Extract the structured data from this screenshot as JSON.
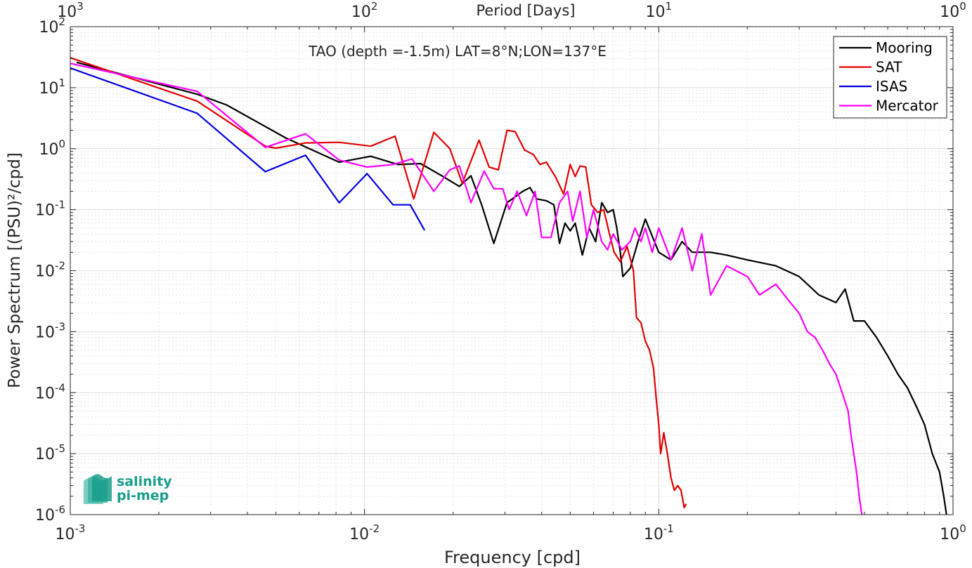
{
  "chart_data": {
    "type": "line",
    "title": "TAO (depth =-1.5m) LAT=8°N;LON=137°E",
    "xlabel": "Frequency [cpd]",
    "ylabel": "Power Spectrum [(PSU)²/cpd]",
    "top_xlabel": "Period [Days]",
    "x_scale": "log",
    "y_scale": "log",
    "xlim": [
      0.001,
      1
    ],
    "ylim": [
      1e-06,
      100
    ],
    "grid": true,
    "legend_position": "top-right",
    "x_ticks": [
      {
        "value": 0.001,
        "base": "10",
        "exp": "-3"
      },
      {
        "value": 0.01,
        "base": "10",
        "exp": "-2"
      },
      {
        "value": 0.1,
        "base": "10",
        "exp": "-1"
      },
      {
        "value": 1,
        "base": "10",
        "exp": "0"
      }
    ],
    "top_ticks": [
      {
        "value": 0.001,
        "base": "10",
        "exp": "3"
      },
      {
        "value": 0.01,
        "base": "10",
        "exp": "2"
      },
      {
        "value": 0.1,
        "base": "10",
        "exp": "1"
      },
      {
        "value": 1,
        "base": "10",
        "exp": "0"
      }
    ],
    "y_ticks": [
      {
        "value": 100,
        "base": "10",
        "exp": "2"
      },
      {
        "value": 10,
        "base": "10",
        "exp": "1"
      },
      {
        "value": 1,
        "base": "10",
        "exp": "0"
      },
      {
        "value": 0.1,
        "base": "10",
        "exp": "-1"
      },
      {
        "value": 0.01,
        "base": "10",
        "exp": "-2"
      },
      {
        "value": 0.001,
        "base": "10",
        "exp": "-3"
      },
      {
        "value": 0.0001,
        "base": "10",
        "exp": "-4"
      },
      {
        "value": 1e-05,
        "base": "10",
        "exp": "-5"
      },
      {
        "value": 1e-06,
        "base": "10",
        "exp": "-6"
      }
    ],
    "series": [
      {
        "name": "Mooring",
        "color": "#000000",
        "points": [
          [
            0.00105,
            26
          ],
          [
            0.0027,
            7.8
          ],
          [
            0.0034,
            5.2
          ],
          [
            0.0054,
            1.5
          ],
          [
            0.0082,
            0.6
          ],
          [
            0.0105,
            0.75
          ],
          [
            0.013,
            0.55
          ],
          [
            0.0155,
            0.57
          ],
          [
            0.0185,
            0.35
          ],
          [
            0.021,
            0.24
          ],
          [
            0.023,
            0.36
          ],
          [
            0.025,
            0.12
          ],
          [
            0.0275,
            0.028
          ],
          [
            0.0305,
            0.13
          ],
          [
            0.0345,
            0.2
          ],
          [
            0.0365,
            0.23
          ],
          [
            0.0385,
            0.15
          ],
          [
            0.0415,
            0.14
          ],
          [
            0.044,
            0.12
          ],
          [
            0.046,
            0.028
          ],
          [
            0.048,
            0.06
          ],
          [
            0.05,
            0.045
          ],
          [
            0.052,
            0.06
          ],
          [
            0.055,
            0.018
          ],
          [
            0.058,
            0.05
          ],
          [
            0.061,
            0.03
          ],
          [
            0.064,
            0.13
          ],
          [
            0.067,
            0.09
          ],
          [
            0.07,
            0.1
          ],
          [
            0.072,
            0.05
          ],
          [
            0.074,
            0.02
          ],
          [
            0.0755,
            0.008
          ],
          [
            0.08,
            0.011
          ],
          [
            0.085,
            0.03
          ],
          [
            0.09,
            0.07
          ],
          [
            0.1,
            0.02
          ],
          [
            0.11,
            0.015
          ],
          [
            0.12,
            0.03
          ],
          [
            0.13,
            0.02
          ],
          [
            0.15,
            0.02
          ],
          [
            0.17,
            0.018
          ],
          [
            0.2,
            0.015
          ],
          [
            0.25,
            0.012
          ],
          [
            0.3,
            0.008
          ],
          [
            0.35,
            0.004
          ],
          [
            0.4,
            0.003
          ],
          [
            0.43,
            0.005
          ],
          [
            0.46,
            0.0015
          ],
          [
            0.5,
            0.0015
          ],
          [
            0.55,
            0.0008
          ],
          [
            0.6,
            0.0004
          ],
          [
            0.65,
            0.0002
          ],
          [
            0.7,
            0.00012
          ],
          [
            0.75,
            6e-05
          ],
          [
            0.8,
            3e-05
          ],
          [
            0.85,
            1e-05
          ],
          [
            0.9,
            5e-06
          ],
          [
            0.93,
            2e-06
          ],
          [
            0.95,
            1e-06
          ]
        ]
      },
      {
        "name": "SAT",
        "color": "#e40000",
        "points": [
          [
            0.001,
            31
          ],
          [
            0.0027,
            6
          ],
          [
            0.0046,
            1.1
          ],
          [
            0.005,
            1.02
          ],
          [
            0.0063,
            1.24
          ],
          [
            0.0082,
            1.27
          ],
          [
            0.0105,
            1.1
          ],
          [
            0.0127,
            1.6
          ],
          [
            0.0147,
            0.15
          ],
          [
            0.0172,
            1.85
          ],
          [
            0.0195,
            1
          ],
          [
            0.0215,
            0.27
          ],
          [
            0.0245,
            1.38
          ],
          [
            0.0265,
            0.5
          ],
          [
            0.0285,
            0.45
          ],
          [
            0.0305,
            2
          ],
          [
            0.0325,
            1.9
          ],
          [
            0.035,
            0.95
          ],
          [
            0.0375,
            0.8
          ],
          [
            0.0395,
            0.55
          ],
          [
            0.0415,
            0.6
          ],
          [
            0.0445,
            0.35
          ],
          [
            0.0475,
            0.18
          ],
          [
            0.05,
            0.55
          ],
          [
            0.052,
            0.35
          ],
          [
            0.054,
            0.52
          ],
          [
            0.0565,
            0.5
          ],
          [
            0.059,
            0.12
          ],
          [
            0.062,
            0.09
          ],
          [
            0.065,
            0.1
          ],
          [
            0.068,
            0.04
          ],
          [
            0.0705,
            0.02
          ],
          [
            0.074,
            0.014
          ],
          [
            0.078,
            0.025
          ],
          [
            0.082,
            0.01
          ],
          [
            0.084,
            0.0017
          ],
          [
            0.087,
            0.0014
          ],
          [
            0.09,
            0.0007
          ],
          [
            0.093,
            0.0005
          ],
          [
            0.096,
            0.00025
          ],
          [
            0.098,
            8e-05
          ],
          [
            0.1,
            3e-05
          ],
          [
            0.1015,
            1e-05
          ],
          [
            0.104,
            2.2e-05
          ],
          [
            0.107,
            1e-05
          ],
          [
            0.11,
            4e-06
          ],
          [
            0.113,
            2.5e-06
          ],
          [
            0.116,
            3e-06
          ],
          [
            0.119,
            2.5e-06
          ],
          [
            0.122,
            1.3e-06
          ],
          [
            0.124,
            1.5e-06
          ]
        ]
      },
      {
        "name": "ISAS",
        "color": "#0000e6",
        "points": [
          [
            0.001,
            21
          ],
          [
            0.0027,
            3.8
          ],
          [
            0.0046,
            0.42
          ],
          [
            0.0063,
            0.78
          ],
          [
            0.0082,
            0.13
          ],
          [
            0.0102,
            0.39
          ],
          [
            0.0125,
            0.12
          ],
          [
            0.0143,
            0.12
          ],
          [
            0.016,
            0.046
          ]
        ]
      },
      {
        "name": "Mercator",
        "color": "#ff00ff",
        "points": [
          [
            0.001,
            25
          ],
          [
            0.0027,
            8.7
          ],
          [
            0.0046,
            1.05
          ],
          [
            0.0063,
            1.75
          ],
          [
            0.0082,
            0.65
          ],
          [
            0.0102,
            0.5
          ],
          [
            0.0125,
            0.55
          ],
          [
            0.0145,
            0.68
          ],
          [
            0.0172,
            0.2
          ],
          [
            0.0195,
            0.45
          ],
          [
            0.021,
            0.52
          ],
          [
            0.023,
            0.13
          ],
          [
            0.0255,
            0.43
          ],
          [
            0.0275,
            0.22
          ],
          [
            0.0295,
            0.22
          ],
          [
            0.031,
            0.1
          ],
          [
            0.033,
            0.2
          ],
          [
            0.0355,
            0.08
          ],
          [
            0.038,
            0.2
          ],
          [
            0.04,
            0.035
          ],
          [
            0.043,
            0.035
          ],
          [
            0.046,
            0.13
          ],
          [
            0.049,
            0.2
          ],
          [
            0.051,
            0.065
          ],
          [
            0.054,
            0.2
          ],
          [
            0.057,
            0.035
          ],
          [
            0.06,
            0.1
          ],
          [
            0.064,
            0.03
          ],
          [
            0.067,
            0.022
          ],
          [
            0.07,
            0.04
          ],
          [
            0.075,
            0.022
          ],
          [
            0.08,
            0.03
          ],
          [
            0.083,
            0.05
          ],
          [
            0.087,
            0.03
          ],
          [
            0.09,
            0.05
          ],
          [
            0.095,
            0.02
          ],
          [
            0.1,
            0.05
          ],
          [
            0.11,
            0.015
          ],
          [
            0.12,
            0.05
          ],
          [
            0.13,
            0.01
          ],
          [
            0.14,
            0.04
          ],
          [
            0.15,
            0.004
          ],
          [
            0.17,
            0.012
          ],
          [
            0.2,
            0.008
          ],
          [
            0.22,
            0.004
          ],
          [
            0.25,
            0.006
          ],
          [
            0.28,
            0.003
          ],
          [
            0.3,
            0.002
          ],
          [
            0.32,
            0.001
          ],
          [
            0.34,
            0.0008
          ],
          [
            0.36,
            0.0005
          ],
          [
            0.38,
            0.0003
          ],
          [
            0.4,
            0.0002
          ],
          [
            0.42,
            0.0001
          ],
          [
            0.44,
            5e-05
          ],
          [
            0.45,
            2e-05
          ],
          [
            0.46,
            1e-05
          ],
          [
            0.47,
            5e-06
          ],
          [
            0.48,
            2e-06
          ],
          [
            0.49,
            1e-06
          ]
        ]
      }
    ]
  },
  "logo": {
    "line1": "salinity",
    "line2": "pi-mep",
    "color": "#1a9e8c"
  }
}
